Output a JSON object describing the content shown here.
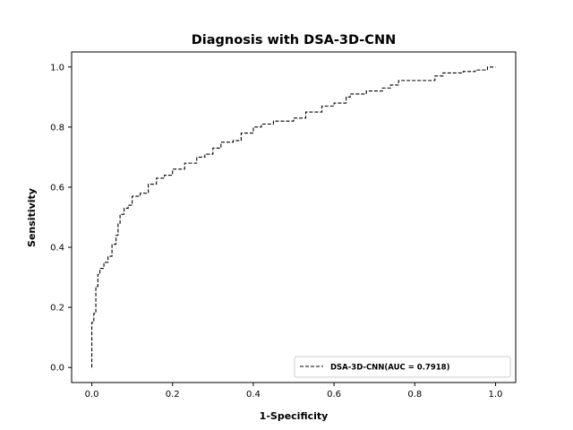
{
  "chart_data": {
    "type": "line",
    "title": "Diagnosis with DSA-3D-CNN",
    "xlabel": "1-Specificity",
    "ylabel": "Sensitivity",
    "xlim": [
      -0.05,
      1.05
    ],
    "ylim": [
      -0.05,
      1.05
    ],
    "xticks": [
      "0.0",
      "0.2",
      "0.4",
      "0.6",
      "0.8",
      "1.0"
    ],
    "yticks": [
      "0.0",
      "0.2",
      "0.4",
      "0.6",
      "0.8",
      "1.0"
    ],
    "grid": false,
    "legend_position": "lower-right",
    "series": [
      {
        "name": "DSA-3D-CNN(AUC = 0.7918)",
        "line_style": "dashed",
        "color": "#000000",
        "x": [
          0.0,
          0.0,
          0.005,
          0.005,
          0.01,
          0.01,
          0.015,
          0.015,
          0.02,
          0.02,
          0.03,
          0.03,
          0.04,
          0.04,
          0.05,
          0.05,
          0.06,
          0.06,
          0.065,
          0.065,
          0.07,
          0.07,
          0.08,
          0.08,
          0.09,
          0.09,
          0.1,
          0.1,
          0.12,
          0.12,
          0.14,
          0.14,
          0.16,
          0.16,
          0.18,
          0.18,
          0.2,
          0.2,
          0.23,
          0.23,
          0.26,
          0.26,
          0.28,
          0.28,
          0.3,
          0.3,
          0.32,
          0.32,
          0.35,
          0.35,
          0.37,
          0.37,
          0.4,
          0.4,
          0.42,
          0.42,
          0.45,
          0.45,
          0.5,
          0.5,
          0.53,
          0.53,
          0.57,
          0.57,
          0.6,
          0.6,
          0.63,
          0.63,
          0.64,
          0.64,
          0.68,
          0.68,
          0.72,
          0.72,
          0.74,
          0.74,
          0.76,
          0.76,
          0.85,
          0.85,
          0.87,
          0.87,
          0.92,
          0.92,
          0.95,
          0.95,
          0.98,
          0.98,
          1.0
        ],
        "y": [
          0.0,
          0.15,
          0.15,
          0.18,
          0.18,
          0.27,
          0.27,
          0.31,
          0.31,
          0.33,
          0.33,
          0.35,
          0.35,
          0.37,
          0.37,
          0.41,
          0.41,
          0.44,
          0.44,
          0.48,
          0.48,
          0.51,
          0.51,
          0.53,
          0.53,
          0.54,
          0.54,
          0.57,
          0.57,
          0.58,
          0.58,
          0.61,
          0.61,
          0.63,
          0.63,
          0.64,
          0.64,
          0.66,
          0.66,
          0.68,
          0.68,
          0.7,
          0.7,
          0.71,
          0.71,
          0.73,
          0.73,
          0.75,
          0.75,
          0.755,
          0.755,
          0.78,
          0.78,
          0.8,
          0.8,
          0.81,
          0.81,
          0.82,
          0.82,
          0.83,
          0.83,
          0.85,
          0.85,
          0.87,
          0.87,
          0.88,
          0.88,
          0.9,
          0.9,
          0.91,
          0.91,
          0.92,
          0.92,
          0.93,
          0.93,
          0.94,
          0.94,
          0.955,
          0.955,
          0.97,
          0.97,
          0.98,
          0.98,
          0.985,
          0.985,
          0.99,
          0.99,
          1.0,
          1.0
        ]
      }
    ]
  }
}
